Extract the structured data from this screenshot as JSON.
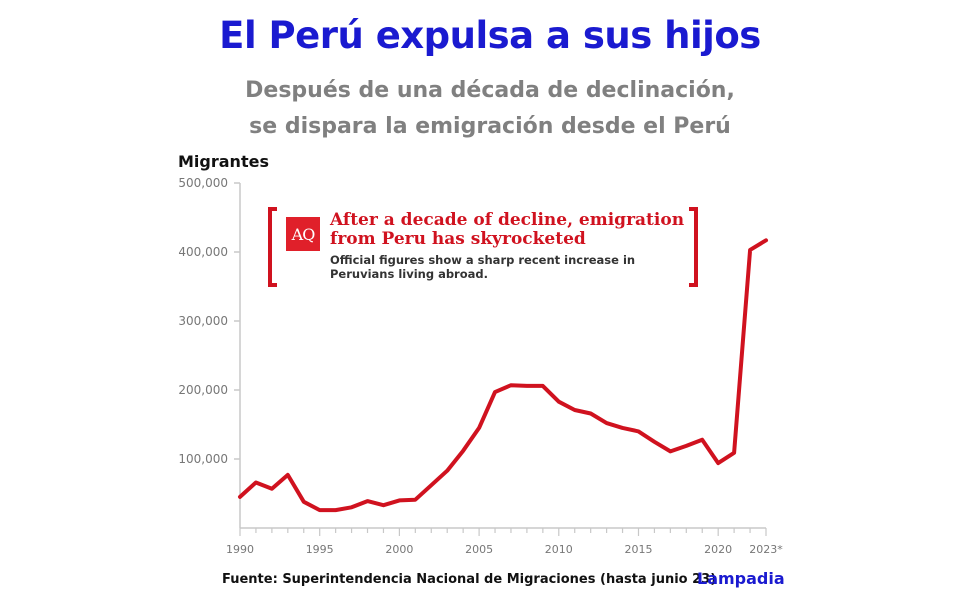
{
  "header": {
    "title": "El Perú expulsa a sus hijos",
    "subtitle_line1": "Después de una década de declinación,",
    "subtitle_line2": "se dispara la emigración desde el Perú"
  },
  "annotation": {
    "logo": "AQ",
    "headline_line1": "After a decade of decline, emigration",
    "headline_line2": "from Peru has skyrocketed",
    "description_line1": "Official figures show a sharp recent increase in",
    "description_line2": "Peruvians living abroad."
  },
  "footer": {
    "source": "Fuente: Superintendencia Nacional de Migraciones (hasta junio 23)",
    "brand": "Lampadia"
  },
  "colors": {
    "title": "#1a1ad0",
    "subtitle": "#808080",
    "line": "#d0121f",
    "axis": "#c8c8c8"
  },
  "chart_data": {
    "type": "line",
    "title": "El Perú expulsa a sus hijos",
    "subtitle": "Después de una década de declinación, se dispara la emigración desde el Perú",
    "xlabel": "",
    "ylabel": "Migrantes",
    "ylim": [
      0,
      500000
    ],
    "yticks": [
      100000,
      200000,
      300000,
      400000,
      500000
    ],
    "ytick_labels": [
      "100,000",
      "200,000",
      "300,000",
      "400,000",
      "500,000"
    ],
    "xticks": [
      1990,
      1995,
      2000,
      2005,
      2010,
      2015,
      2020,
      2023
    ],
    "xtick_labels": [
      "1990",
      "1995",
      "2000",
      "2005",
      "2010",
      "2015",
      "2020",
      "2023*"
    ],
    "grid": false,
    "legend": null,
    "series": [
      {
        "name": "Migrantes",
        "x": [
          1990,
          1991,
          1992,
          1993,
          1994,
          1995,
          1996,
          1997,
          1998,
          1999,
          2000,
          2001,
          2002,
          2003,
          2004,
          2005,
          2006,
          2007,
          2008,
          2009,
          2010,
          2011,
          2012,
          2013,
          2014,
          2015,
          2016,
          2017,
          2018,
          2019,
          2020,
          2021,
          2022,
          2023
        ],
        "values": [
          45000,
          66000,
          57000,
          77000,
          38000,
          26000,
          26000,
          30000,
          39000,
          33000,
          40000,
          41000,
          62000,
          83000,
          112000,
          145000,
          197000,
          207000,
          206000,
          206000,
          183000,
          171000,
          166000,
          152000,
          145000,
          140000,
          125000,
          111000,
          119000,
          128000,
          94000,
          109000,
          403000,
          417000
        ]
      }
    ]
  }
}
